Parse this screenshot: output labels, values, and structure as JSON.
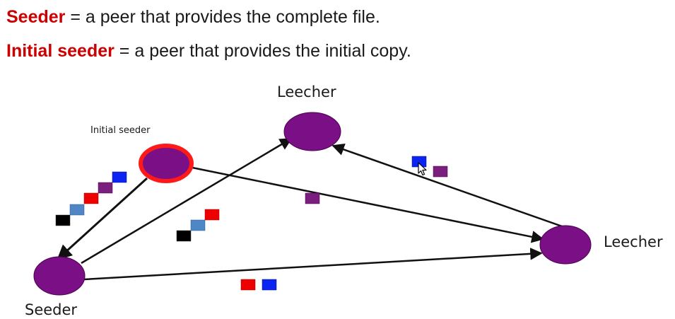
{
  "definitions": [
    {
      "term": "Seeder",
      "text": " = a peer that provides the complete file."
    },
    {
      "term": "Initial seeder",
      "text": " = a peer that provides the initial copy."
    }
  ],
  "nodes": {
    "leecher_top": "Leecher",
    "leecher_right": "Leecher",
    "seeder": "Seeder",
    "initial_seeder": "Initial seeder"
  },
  "colors": {
    "term": "#cc0000",
    "node_fill": "#7b0f86",
    "initial_seeder_ring": "#ff1a1a",
    "piece_black": "#000000",
    "piece_steelblue": "#4f86c6",
    "piece_red": "#ee0000",
    "piece_purple": "#7a1f7d",
    "piece_blue": "#0b24f2",
    "arrow": "#111111"
  },
  "icons": {
    "cursor": "mouse-pointer-icon"
  }
}
